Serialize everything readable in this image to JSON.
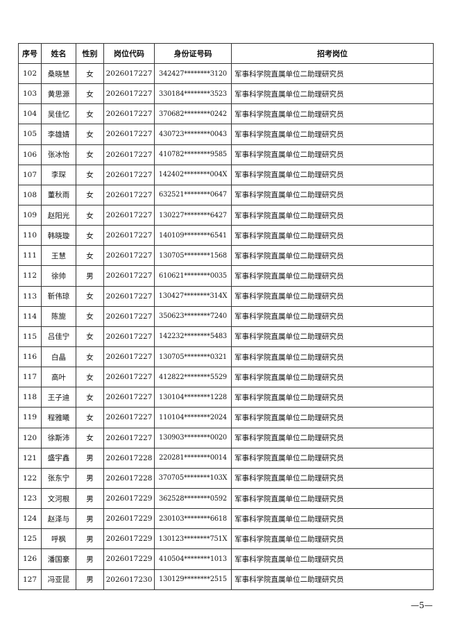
{
  "headers": [
    "序号",
    "姓名",
    "性别",
    "岗位代码",
    "身份证号码",
    "招考岗位"
  ],
  "rows": [
    [
      "102",
      "桑晓慧",
      "女",
      "2026017227",
      "342427********3120",
      "军事科学院直属单位二助理研究员"
    ],
    [
      "103",
      "黄思源",
      "女",
      "2026017227",
      "330184********3523",
      "军事科学院直属单位二助理研究员"
    ],
    [
      "104",
      "吴佳忆",
      "女",
      "2026017227",
      "370682********0242",
      "军事科学院直属单位二助理研究员"
    ],
    [
      "105",
      "李雄婧",
      "女",
      "2026017227",
      "430723********0043",
      "军事科学院直属单位二助理研究员"
    ],
    [
      "106",
      "张冰怡",
      "女",
      "2026017227",
      "410782********9585",
      "军事科学院直属单位二助理研究员"
    ],
    [
      "107",
      "李琛",
      "女",
      "2026017227",
      "142402********004X",
      "军事科学院直属单位二助理研究员"
    ],
    [
      "108",
      "董秋雨",
      "女",
      "2026017227",
      "632521********0647",
      "军事科学院直属单位二助理研究员"
    ],
    [
      "109",
      "赵阳光",
      "女",
      "2026017227",
      "130227********6427",
      "军事科学院直属单位二助理研究员"
    ],
    [
      "110",
      "韩晓璇",
      "女",
      "2026017227",
      "140109********6541",
      "军事科学院直属单位二助理研究员"
    ],
    [
      "111",
      "王慧",
      "女",
      "2026017227",
      "130705********1568",
      "军事科学院直属单位二助理研究员"
    ],
    [
      "112",
      "徐帅",
      "男",
      "2026017227",
      "610621********0035",
      "军事科学院直属单位二助理研究员"
    ],
    [
      "113",
      "靳伟琼",
      "女",
      "2026017227",
      "130427********314X",
      "军事科学院直属单位二助理研究员"
    ],
    [
      "114",
      "陈旎",
      "女",
      "2026017227",
      "350623********7240",
      "军事科学院直属单位二助理研究员"
    ],
    [
      "115",
      "吕佳宁",
      "女",
      "2026017227",
      "142232********5483",
      "军事科学院直属单位二助理研究员"
    ],
    [
      "116",
      "白晶",
      "女",
      "2026017227",
      "130705********0321",
      "军事科学院直属单位二助理研究员"
    ],
    [
      "117",
      "高叶",
      "女",
      "2026017227",
      "412822********5529",
      "军事科学院直属单位二助理研究员"
    ],
    [
      "118",
      "王子迪",
      "女",
      "2026017227",
      "130104********1228",
      "军事科学院直属单位二助理研究员"
    ],
    [
      "119",
      "程雅曦",
      "女",
      "2026017227",
      "110104********2024",
      "军事科学院直属单位二助理研究员"
    ],
    [
      "120",
      "徐斯沛",
      "女",
      "2026017227",
      "130903********0020",
      "军事科学院直属单位二助理研究员"
    ],
    [
      "121",
      "盛宇鑫",
      "男",
      "2026017228",
      "220281********0014",
      "军事科学院直属单位二助理研究员"
    ],
    [
      "122",
      "张东宁",
      "男",
      "2026017228",
      "370705********103X",
      "军事科学院直属单位二助理研究员"
    ],
    [
      "123",
      "文河根",
      "男",
      "2026017229",
      "362528********0592",
      "军事科学院直属单位二助理研究员"
    ],
    [
      "124",
      "赵泽与",
      "男",
      "2026017229",
      "230103********6618",
      "军事科学院直属单位二助理研究员"
    ],
    [
      "125",
      "呼枫",
      "男",
      "2026017229",
      "130123********751X",
      "军事科学院直属单位二助理研究员"
    ],
    [
      "126",
      "潘国豪",
      "男",
      "2026017229",
      "410504********1013",
      "军事科学院直属单位二助理研究员"
    ],
    [
      "127",
      "冯亚昆",
      "男",
      "2026017230",
      "130129********2515",
      "军事科学院直属单位二助理研究员"
    ]
  ],
  "footer": {
    "page_number": "—5—"
  }
}
